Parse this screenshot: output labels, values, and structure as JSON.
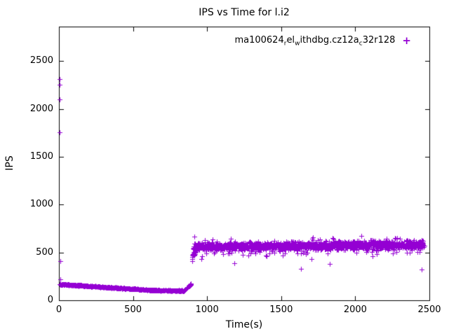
{
  "chart_data": {
    "type": "scatter",
    "title": "IPS vs Time for l.i2",
    "xlabel": "Time(s)",
    "ylabel": "IPS",
    "xlim": [
      0,
      2500
    ],
    "ylim": [
      0,
      2860
    ],
    "xticks": [
      0,
      500,
      1000,
      1500,
      2000,
      2500
    ],
    "yticks": [
      0,
      500,
      1000,
      1500,
      2000,
      2500
    ],
    "grid": false,
    "legend_position": "top-right-inside",
    "marker": "plus",
    "marker_color": "#9400d3",
    "axis_color": "#000000",
    "series": [
      {
        "name": "ma100624_rel_withdbg.cz12a_c32r128",
        "label_segments": [
          {
            "text": "ma100624"
          },
          {
            "sub": "r"
          },
          {
            "text": "el"
          },
          {
            "sub": "w"
          },
          {
            "text": "ithdbg.cz12a"
          },
          {
            "sub": "c"
          },
          {
            "text": "32r128"
          }
        ],
        "seed": 42,
        "bands": [
          {
            "x0": 2,
            "x1": 650,
            "count": 340,
            "y0": 168,
            "y1": 104,
            "noise": 9
          },
          {
            "x0": 650,
            "x1": 845,
            "count": 110,
            "y0": 104,
            "y1": 100,
            "noise": 8
          },
          {
            "x0": 845,
            "x1": 893,
            "count": 55,
            "y0": 103,
            "y1": 172,
            "noise": 10
          },
          {
            "x0": 897,
            "x1": 940,
            "count": 35,
            "y0": 450,
            "y1": 555,
            "noise": 55
          },
          {
            "x0": 905,
            "x1": 2465,
            "count": 1050,
            "y0": 558,
            "y1": 582,
            "noise": 62
          },
          {
            "x0": 905,
            "x1": 2465,
            "count": 320,
            "y0": 552,
            "y1": 585,
            "noise": 118
          }
        ],
        "points": [
          [
            3,
            2310
          ],
          [
            4,
            2255
          ],
          [
            5,
            2100
          ],
          [
            6,
            1755
          ],
          [
            8,
            412
          ],
          [
            10,
            222
          ],
          [
            960,
            432
          ],
          [
            1185,
            386
          ],
          [
            1402,
            458
          ],
          [
            1632,
            330
          ],
          [
            1706,
            428
          ],
          [
            1830,
            377
          ],
          [
            2118,
            462
          ],
          [
            2446,
            320
          ],
          [
            2452,
            545
          ]
        ]
      }
    ]
  }
}
